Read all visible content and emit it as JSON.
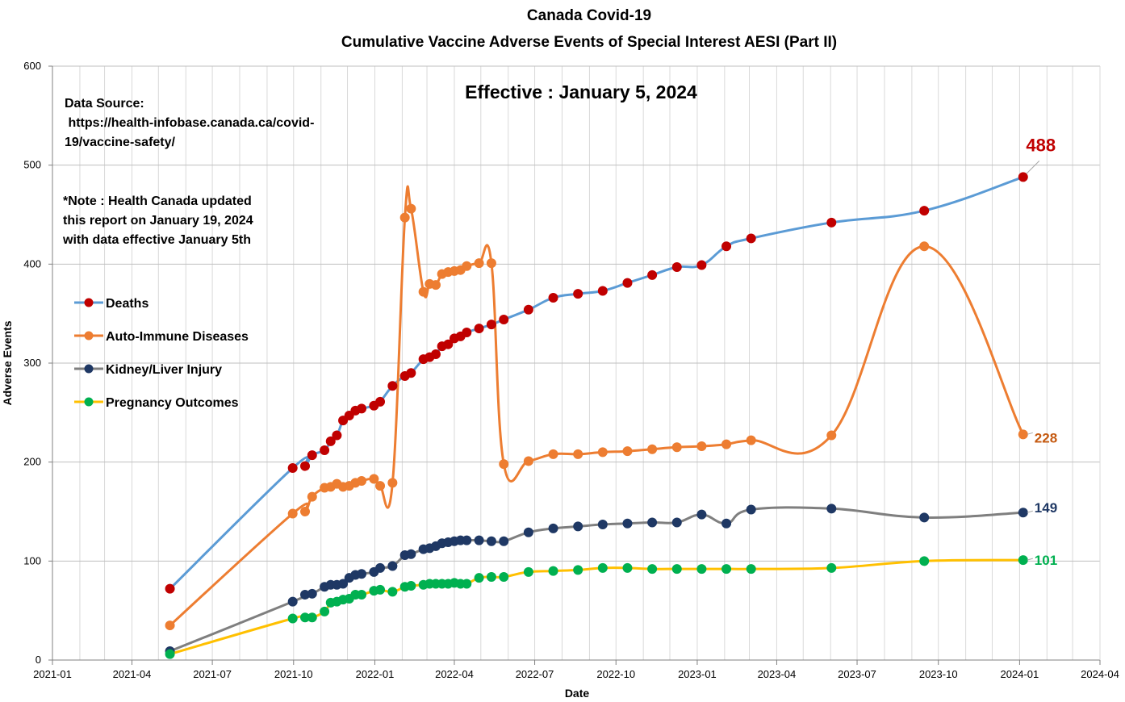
{
  "chart_data": {
    "type": "line",
    "title": "Canada Covid-19",
    "subtitle": "Cumulative Vaccine Adverse Events of Special Interest AESI (Part II)",
    "xlabel": "Date",
    "ylabel": "Adverse Events",
    "ylim": [
      0,
      600
    ],
    "yticks": [
      "0",
      "100",
      "200",
      "300",
      "400",
      "500",
      "600"
    ],
    "xlim": [
      "2021-01",
      "2024-04"
    ],
    "xticks": [
      "2021-01",
      "2021-04",
      "2021-07",
      "2021-10",
      "2022-01",
      "2022-04",
      "2022-07",
      "2022-10",
      "2023-01",
      "2023-04",
      "2023-07",
      "2023-10",
      "2024-01",
      "2024-04"
    ],
    "grid": true,
    "legend_position": "left",
    "annotations": {
      "effective": "Effective : January 5, 2024",
      "source_lines": [
        "Data Source:",
        " https://health-infobase.canada.ca/covid-",
        "19/vaccine-safety/"
      ],
      "note_lines": [
        "*Note : Health Canada updated",
        "this report on January 19, 2024",
        "with data effective January 5th"
      ]
    },
    "series": [
      {
        "name": "Deaths",
        "line_color": "#5b9bd5",
        "marker_color": "#c00000",
        "end_label": "488",
        "end_label_color": "#c00000",
        "points": [
          [
            "2021-05-14",
            72
          ],
          [
            "2021-09-30",
            194
          ],
          [
            "2021-10-14",
            196
          ],
          [
            "2021-10-22",
            207
          ],
          [
            "2021-11-05",
            212
          ],
          [
            "2021-11-12",
            221
          ],
          [
            "2021-11-19",
            227
          ],
          [
            "2021-11-26",
            242
          ],
          [
            "2021-12-03",
            247
          ],
          [
            "2021-12-10",
            252
          ],
          [
            "2021-12-17",
            254
          ],
          [
            "2021-12-31",
            257
          ],
          [
            "2022-01-07",
            261
          ],
          [
            "2022-01-21",
            277
          ],
          [
            "2022-02-04",
            287
          ],
          [
            "2022-02-11",
            290
          ],
          [
            "2022-02-25",
            304
          ],
          [
            "2022-03-04",
            306
          ],
          [
            "2022-03-11",
            309
          ],
          [
            "2022-03-18",
            317
          ],
          [
            "2022-03-25",
            319
          ],
          [
            "2022-04-01",
            325
          ],
          [
            "2022-04-08",
            327
          ],
          [
            "2022-04-15",
            331
          ],
          [
            "2022-04-29",
            335
          ],
          [
            "2022-05-13",
            339
          ],
          [
            "2022-05-27",
            344
          ],
          [
            "2022-06-24",
            354
          ],
          [
            "2022-07-22",
            366
          ],
          [
            "2022-08-19",
            370
          ],
          [
            "2022-09-16",
            373
          ],
          [
            "2022-10-14",
            381
          ],
          [
            "2022-11-11",
            389
          ],
          [
            "2022-12-09",
            397
          ],
          [
            "2023-01-06",
            399
          ],
          [
            "2023-02-03",
            418
          ],
          [
            "2023-03-03",
            426
          ],
          [
            "2023-06-02",
            442
          ],
          [
            "2023-09-15",
            454
          ],
          [
            "2024-01-05",
            488
          ]
        ]
      },
      {
        "name": "Auto-Immune Diseases",
        "line_color": "#ed7d31",
        "marker_color": "#ed7d31",
        "end_label": "228",
        "end_label_color": "#c55a11",
        "points": [
          [
            "2021-05-14",
            35
          ],
          [
            "2021-09-30",
            148
          ],
          [
            "2021-10-14",
            150
          ],
          [
            "2021-10-22",
            165
          ],
          [
            "2021-11-05",
            174
          ],
          [
            "2021-11-12",
            175
          ],
          [
            "2021-11-19",
            178
          ],
          [
            "2021-11-26",
            175
          ],
          [
            "2021-12-03",
            176
          ],
          [
            "2021-12-10",
            179
          ],
          [
            "2021-12-17",
            181
          ],
          [
            "2021-12-31",
            183
          ],
          [
            "2022-01-07",
            176
          ],
          [
            "2022-01-21",
            179
          ],
          [
            "2022-02-04",
            447
          ],
          [
            "2022-02-11",
            456
          ],
          [
            "2022-02-25",
            372
          ],
          [
            "2022-03-04",
            380
          ],
          [
            "2022-03-11",
            379
          ],
          [
            "2022-03-18",
            390
          ],
          [
            "2022-03-25",
            392
          ],
          [
            "2022-04-01",
            393
          ],
          [
            "2022-04-08",
            394
          ],
          [
            "2022-04-15",
            398
          ],
          [
            "2022-04-29",
            401
          ],
          [
            "2022-05-13",
            401
          ],
          [
            "2022-05-27",
            198
          ],
          [
            "2022-06-24",
            201
          ],
          [
            "2022-07-22",
            208
          ],
          [
            "2022-08-19",
            208
          ],
          [
            "2022-09-16",
            210
          ],
          [
            "2022-10-14",
            211
          ],
          [
            "2022-11-11",
            213
          ],
          [
            "2022-12-09",
            215
          ],
          [
            "2023-01-06",
            216
          ],
          [
            "2023-02-03",
            218
          ],
          [
            "2023-03-03",
            222
          ],
          [
            "2023-06-02",
            227
          ],
          [
            "2023-09-15",
            418
          ],
          [
            "2024-01-05",
            228
          ]
        ]
      },
      {
        "name": "Kidney/Liver Injury",
        "line_color": "#7f7f7f",
        "marker_color": "#1f3864",
        "end_label": "149",
        "end_label_color": "#1f3864",
        "points": [
          [
            "2021-05-14",
            9
          ],
          [
            "2021-09-30",
            59
          ],
          [
            "2021-10-14",
            66
          ],
          [
            "2021-10-22",
            67
          ],
          [
            "2021-11-05",
            74
          ],
          [
            "2021-11-12",
            76
          ],
          [
            "2021-11-19",
            76
          ],
          [
            "2021-11-26",
            77
          ],
          [
            "2021-12-03",
            83
          ],
          [
            "2021-12-10",
            86
          ],
          [
            "2021-12-17",
            87
          ],
          [
            "2021-12-31",
            89
          ],
          [
            "2022-01-07",
            93
          ],
          [
            "2022-01-21",
            95
          ],
          [
            "2022-02-04",
            106
          ],
          [
            "2022-02-11",
            107
          ],
          [
            "2022-02-25",
            112
          ],
          [
            "2022-03-04",
            113
          ],
          [
            "2022-03-11",
            115
          ],
          [
            "2022-03-18",
            118
          ],
          [
            "2022-03-25",
            119
          ],
          [
            "2022-04-01",
            120
          ],
          [
            "2022-04-08",
            121
          ],
          [
            "2022-04-15",
            121
          ],
          [
            "2022-04-29",
            121
          ],
          [
            "2022-05-13",
            120
          ],
          [
            "2022-05-27",
            120
          ],
          [
            "2022-06-24",
            129
          ],
          [
            "2022-07-22",
            133
          ],
          [
            "2022-08-19",
            135
          ],
          [
            "2022-09-16",
            137
          ],
          [
            "2022-10-14",
            138
          ],
          [
            "2022-11-11",
            139
          ],
          [
            "2022-12-09",
            139
          ],
          [
            "2023-01-06",
            147
          ],
          [
            "2023-02-03",
            138
          ],
          [
            "2023-03-03",
            152
          ],
          [
            "2023-06-02",
            153
          ],
          [
            "2023-09-15",
            144
          ],
          [
            "2024-01-05",
            149
          ]
        ]
      },
      {
        "name": "Pregnancy Outcomes",
        "line_color": "#ffc000",
        "marker_color": "#00b050",
        "end_label": "101",
        "end_label_color": "#00b050",
        "points": [
          [
            "2021-05-14",
            6
          ],
          [
            "2021-09-30",
            42
          ],
          [
            "2021-10-14",
            43
          ],
          [
            "2021-10-22",
            43
          ],
          [
            "2021-11-05",
            49
          ],
          [
            "2021-11-12",
            58
          ],
          [
            "2021-11-19",
            59
          ],
          [
            "2021-11-26",
            61
          ],
          [
            "2021-12-03",
            62
          ],
          [
            "2021-12-10",
            66
          ],
          [
            "2021-12-17",
            66
          ],
          [
            "2021-12-31",
            70
          ],
          [
            "2022-01-07",
            71
          ],
          [
            "2022-01-21",
            69
          ],
          [
            "2022-02-04",
            74
          ],
          [
            "2022-02-11",
            75
          ],
          [
            "2022-02-25",
            76
          ],
          [
            "2022-03-04",
            77
          ],
          [
            "2022-03-11",
            77
          ],
          [
            "2022-03-18",
            77
          ],
          [
            "2022-03-25",
            77
          ],
          [
            "2022-04-01",
            78
          ],
          [
            "2022-04-08",
            77
          ],
          [
            "2022-04-15",
            77
          ],
          [
            "2022-04-29",
            83
          ],
          [
            "2022-05-13",
            84
          ],
          [
            "2022-05-27",
            84
          ],
          [
            "2022-06-24",
            89
          ],
          [
            "2022-07-22",
            90
          ],
          [
            "2022-08-19",
            91
          ],
          [
            "2022-09-16",
            93
          ],
          [
            "2022-10-14",
            93
          ],
          [
            "2022-11-11",
            92
          ],
          [
            "2022-12-09",
            92
          ],
          [
            "2023-01-06",
            92
          ],
          [
            "2023-02-03",
            92
          ],
          [
            "2023-03-03",
            92
          ],
          [
            "2023-06-02",
            93
          ],
          [
            "2023-09-15",
            100
          ],
          [
            "2024-01-05",
            101
          ]
        ]
      }
    ]
  }
}
